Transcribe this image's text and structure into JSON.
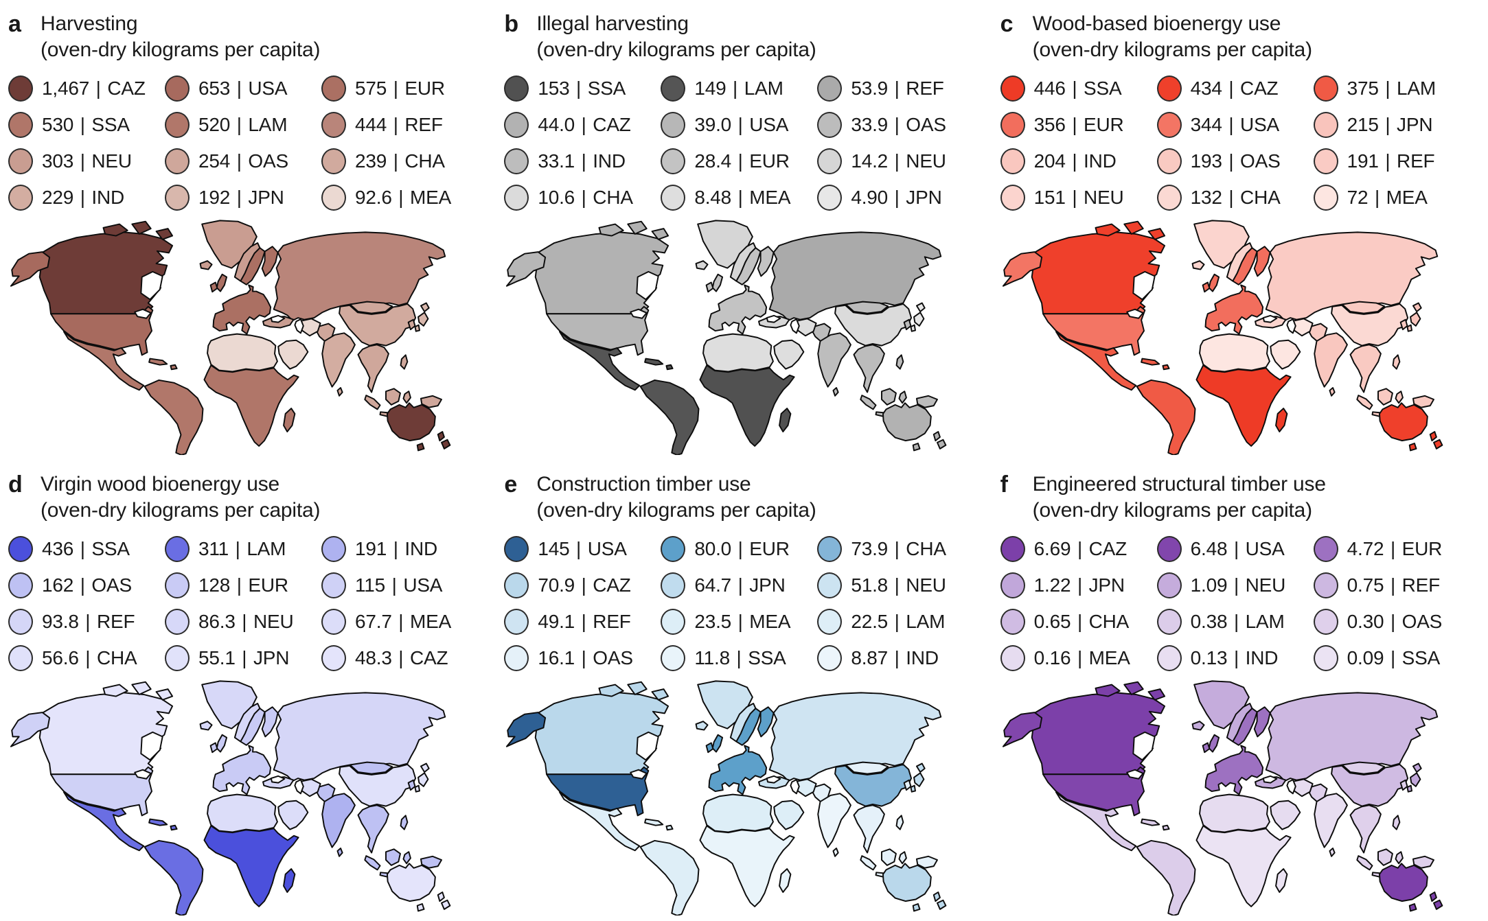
{
  "figure": {
    "divider": "|",
    "panels": [
      {
        "letter": "a",
        "title": "Harvesting",
        "subtitle": "(oven-dry kilograms per capita)",
        "legend": [
          {
            "value": "1,467",
            "code": "CAZ",
            "color": "#6e3c37"
          },
          {
            "value": "653",
            "code": "USA",
            "color": "#a76a5e"
          },
          {
            "value": "575",
            "code": "EUR",
            "color": "#ab7063"
          },
          {
            "value": "530",
            "code": "SSA",
            "color": "#b07669"
          },
          {
            "value": "520",
            "code": "LAM",
            "color": "#b1776a"
          },
          {
            "value": "444",
            "code": "REF",
            "color": "#b9857a"
          },
          {
            "value": "303",
            "code": "NEU",
            "color": "#c99d91"
          },
          {
            "value": "254",
            "code": "OAS",
            "color": "#cfa79b"
          },
          {
            "value": "239",
            "code": "CHA",
            "color": "#d1aa9e"
          },
          {
            "value": "229",
            "code": "IND",
            "color": "#d3ada1"
          },
          {
            "value": "192",
            "code": "JPN",
            "color": "#d8b7ac"
          },
          {
            "value": "92.6",
            "code": "MEA",
            "color": "#ebd9d2"
          }
        ]
      },
      {
        "letter": "b",
        "title": "Illegal harvesting",
        "subtitle": "(oven-dry kilograms per capita)",
        "legend": [
          {
            "value": "153",
            "code": "SSA",
            "color": "#515151"
          },
          {
            "value": "149",
            "code": "LAM",
            "color": "#555555"
          },
          {
            "value": "53.9",
            "code": "REF",
            "color": "#aaaaaa"
          },
          {
            "value": "44.0",
            "code": "CAZ",
            "color": "#b2b2b2"
          },
          {
            "value": "39.0",
            "code": "USA",
            "color": "#b7b7b7"
          },
          {
            "value": "33.9",
            "code": "OAS",
            "color": "#bcbcbc"
          },
          {
            "value": "33.1",
            "code": "IND",
            "color": "#bdbdbd"
          },
          {
            "value": "28.4",
            "code": "EUR",
            "color": "#c3c3c3"
          },
          {
            "value": "14.2",
            "code": "NEU",
            "color": "#d6d6d6"
          },
          {
            "value": "10.6",
            "code": "CHA",
            "color": "#dbdbdb"
          },
          {
            "value": "8.48",
            "code": "MEA",
            "color": "#dedede"
          },
          {
            "value": "4.90",
            "code": "JPN",
            "color": "#e7e7e7"
          }
        ]
      },
      {
        "letter": "c",
        "title": "Wood-based bioenergy use",
        "subtitle": "(oven-dry kilograms per capita)",
        "legend": [
          {
            "value": "446",
            "code": "SSA",
            "color": "#ee3b26"
          },
          {
            "value": "434",
            "code": "CAZ",
            "color": "#ef402b"
          },
          {
            "value": "375",
            "code": "LAM",
            "color": "#f05a45"
          },
          {
            "value": "356",
            "code": "EUR",
            "color": "#f26e5d"
          },
          {
            "value": "344",
            "code": "USA",
            "color": "#f37564"
          },
          {
            "value": "215",
            "code": "JPN",
            "color": "#f9c4bc"
          },
          {
            "value": "204",
            "code": "IND",
            "color": "#f9c7bf"
          },
          {
            "value": "193",
            "code": "OAS",
            "color": "#f9cac2"
          },
          {
            "value": "191",
            "code": "REF",
            "color": "#facbc4"
          },
          {
            "value": "151",
            "code": "NEU",
            "color": "#fbd4ce"
          },
          {
            "value": "132",
            "code": "CHA",
            "color": "#fbd9d3"
          },
          {
            "value": "72",
            "code": "MEA",
            "color": "#fde6e1"
          }
        ]
      },
      {
        "letter": "d",
        "title": "Virgin wood bioenergy use",
        "subtitle": "(oven-dry kilograms per capita)",
        "legend": [
          {
            "value": "436",
            "code": "SSA",
            "color": "#4b50dc"
          },
          {
            "value": "311",
            "code": "LAM",
            "color": "#6a6ee3"
          },
          {
            "value": "191",
            "code": "IND",
            "color": "#aeb2f0"
          },
          {
            "value": "162",
            "code": "OAS",
            "color": "#bec1f3"
          },
          {
            "value": "128",
            "code": "EUR",
            "color": "#c9cbf5"
          },
          {
            "value": "115",
            "code": "USA",
            "color": "#cfd1f6"
          },
          {
            "value": "93.8",
            "code": "REF",
            "color": "#d5d6f7"
          },
          {
            "value": "86.3",
            "code": "NEU",
            "color": "#d7d8f8"
          },
          {
            "value": "67.7",
            "code": "MEA",
            "color": "#dcddf9"
          },
          {
            "value": "56.6",
            "code": "CHA",
            "color": "#e0e1fa"
          },
          {
            "value": "55.1",
            "code": "JPN",
            "color": "#e1e2fa"
          },
          {
            "value": "48.3",
            "code": "CAZ",
            "color": "#e4e4fb"
          }
        ]
      },
      {
        "letter": "e",
        "title": "Construction timber use",
        "subtitle": "(oven-dry kilograms per capita)",
        "legend": [
          {
            "value": "145",
            "code": "USA",
            "color": "#2e6094"
          },
          {
            "value": "80.0",
            "code": "EUR",
            "color": "#5da0ca"
          },
          {
            "value": "73.9",
            "code": "CHA",
            "color": "#84b5d8"
          },
          {
            "value": "70.9",
            "code": "CAZ",
            "color": "#bad8eb"
          },
          {
            "value": "64.7",
            "code": "JPN",
            "color": "#c0dcee"
          },
          {
            "value": "51.8",
            "code": "NEU",
            "color": "#cce3f1"
          },
          {
            "value": "49.1",
            "code": "REF",
            "color": "#cfe4f2"
          },
          {
            "value": "23.5",
            "code": "MEA",
            "color": "#ddeef7"
          },
          {
            "value": "22.5",
            "code": "LAM",
            "color": "#deeef7"
          },
          {
            "value": "16.1",
            "code": "OAS",
            "color": "#e5f1f9"
          },
          {
            "value": "11.8",
            "code": "SSA",
            "color": "#e9f4fa"
          },
          {
            "value": "8.87",
            "code": "IND",
            "color": "#ecf5fb"
          }
        ]
      },
      {
        "letter": "f",
        "title": "Engineered structural timber use",
        "subtitle": "(oven-dry kilograms per capita)",
        "legend": [
          {
            "value": "6.69",
            "code": "CAZ",
            "color": "#7c40a9"
          },
          {
            "value": "6.48",
            "code": "USA",
            "color": "#8146ac"
          },
          {
            "value": "4.72",
            "code": "EUR",
            "color": "#9d71c1"
          },
          {
            "value": "1.22",
            "code": "JPN",
            "color": "#c1a7da"
          },
          {
            "value": "1.09",
            "code": "NEU",
            "color": "#c5acdc"
          },
          {
            "value": "0.75",
            "code": "REF",
            "color": "#cdb8e1"
          },
          {
            "value": "0.65",
            "code": "CHA",
            "color": "#d0bce3"
          },
          {
            "value": "0.38",
            "code": "LAM",
            "color": "#dccdea"
          },
          {
            "value": "0.30",
            "code": "OAS",
            "color": "#dfd0eb"
          },
          {
            "value": "0.16",
            "code": "MEA",
            "color": "#e6dcf0"
          },
          {
            "value": "0.13",
            "code": "IND",
            "color": "#e8def1"
          },
          {
            "value": "0.09",
            "code": "SSA",
            "color": "#ebe3f3"
          }
        ]
      }
    ]
  },
  "chart_data": [
    {
      "type": "heatmap",
      "subtype": "world-choropleth",
      "title": "Harvesting",
      "unit": "oven-dry kilograms per capita",
      "palette": "browns",
      "categories": [
        "CAZ",
        "USA",
        "EUR",
        "SSA",
        "LAM",
        "REF",
        "NEU",
        "OAS",
        "CHA",
        "IND",
        "JPN",
        "MEA"
      ],
      "values": [
        1467,
        653,
        575,
        530,
        520,
        444,
        303,
        254,
        239,
        229,
        192,
        92.6
      ]
    },
    {
      "type": "heatmap",
      "subtype": "world-choropleth",
      "title": "Illegal harvesting",
      "unit": "oven-dry kilograms per capita",
      "palette": "grays",
      "categories": [
        "SSA",
        "LAM",
        "REF",
        "CAZ",
        "USA",
        "OAS",
        "IND",
        "EUR",
        "NEU",
        "CHA",
        "MEA",
        "JPN"
      ],
      "values": [
        153,
        149,
        53.9,
        44.0,
        39.0,
        33.9,
        33.1,
        28.4,
        14.2,
        10.6,
        8.48,
        4.9
      ]
    },
    {
      "type": "heatmap",
      "subtype": "world-choropleth",
      "title": "Wood-based bioenergy use",
      "unit": "oven-dry kilograms per capita",
      "palette": "reds",
      "categories": [
        "SSA",
        "CAZ",
        "LAM",
        "EUR",
        "USA",
        "JPN",
        "IND",
        "OAS",
        "REF",
        "NEU",
        "CHA",
        "MEA"
      ],
      "values": [
        446,
        434,
        375,
        356,
        344,
        215,
        204,
        193,
        191,
        151,
        132,
        72
      ]
    },
    {
      "type": "heatmap",
      "subtype": "world-choropleth",
      "title": "Virgin wood bioenergy use",
      "unit": "oven-dry kilograms per capita",
      "palette": "blue-violets",
      "categories": [
        "SSA",
        "LAM",
        "IND",
        "OAS",
        "EUR",
        "USA",
        "REF",
        "NEU",
        "MEA",
        "CHA",
        "JPN",
        "CAZ"
      ],
      "values": [
        436,
        311,
        191,
        162,
        128,
        115,
        93.8,
        86.3,
        67.7,
        56.6,
        55.1,
        48.3
      ]
    },
    {
      "type": "heatmap",
      "subtype": "world-choropleth",
      "title": "Construction timber use",
      "unit": "oven-dry kilograms per capita",
      "palette": "blues",
      "categories": [
        "USA",
        "EUR",
        "CHA",
        "CAZ",
        "JPN",
        "NEU",
        "REF",
        "MEA",
        "LAM",
        "OAS",
        "SSA",
        "IND"
      ],
      "values": [
        145,
        80.0,
        73.9,
        70.9,
        64.7,
        51.8,
        49.1,
        23.5,
        22.5,
        16.1,
        11.8,
        8.87
      ]
    },
    {
      "type": "heatmap",
      "subtype": "world-choropleth",
      "title": "Engineered structural timber use",
      "unit": "oven-dry kilograms per capita",
      "palette": "purples",
      "categories": [
        "CAZ",
        "USA",
        "EUR",
        "JPN",
        "NEU",
        "REF",
        "CHA",
        "LAM",
        "OAS",
        "MEA",
        "IND",
        "SSA"
      ],
      "values": [
        6.69,
        6.48,
        4.72,
        1.22,
        1.09,
        0.75,
        0.65,
        0.38,
        0.3,
        0.16,
        0.13,
        0.09
      ]
    }
  ]
}
